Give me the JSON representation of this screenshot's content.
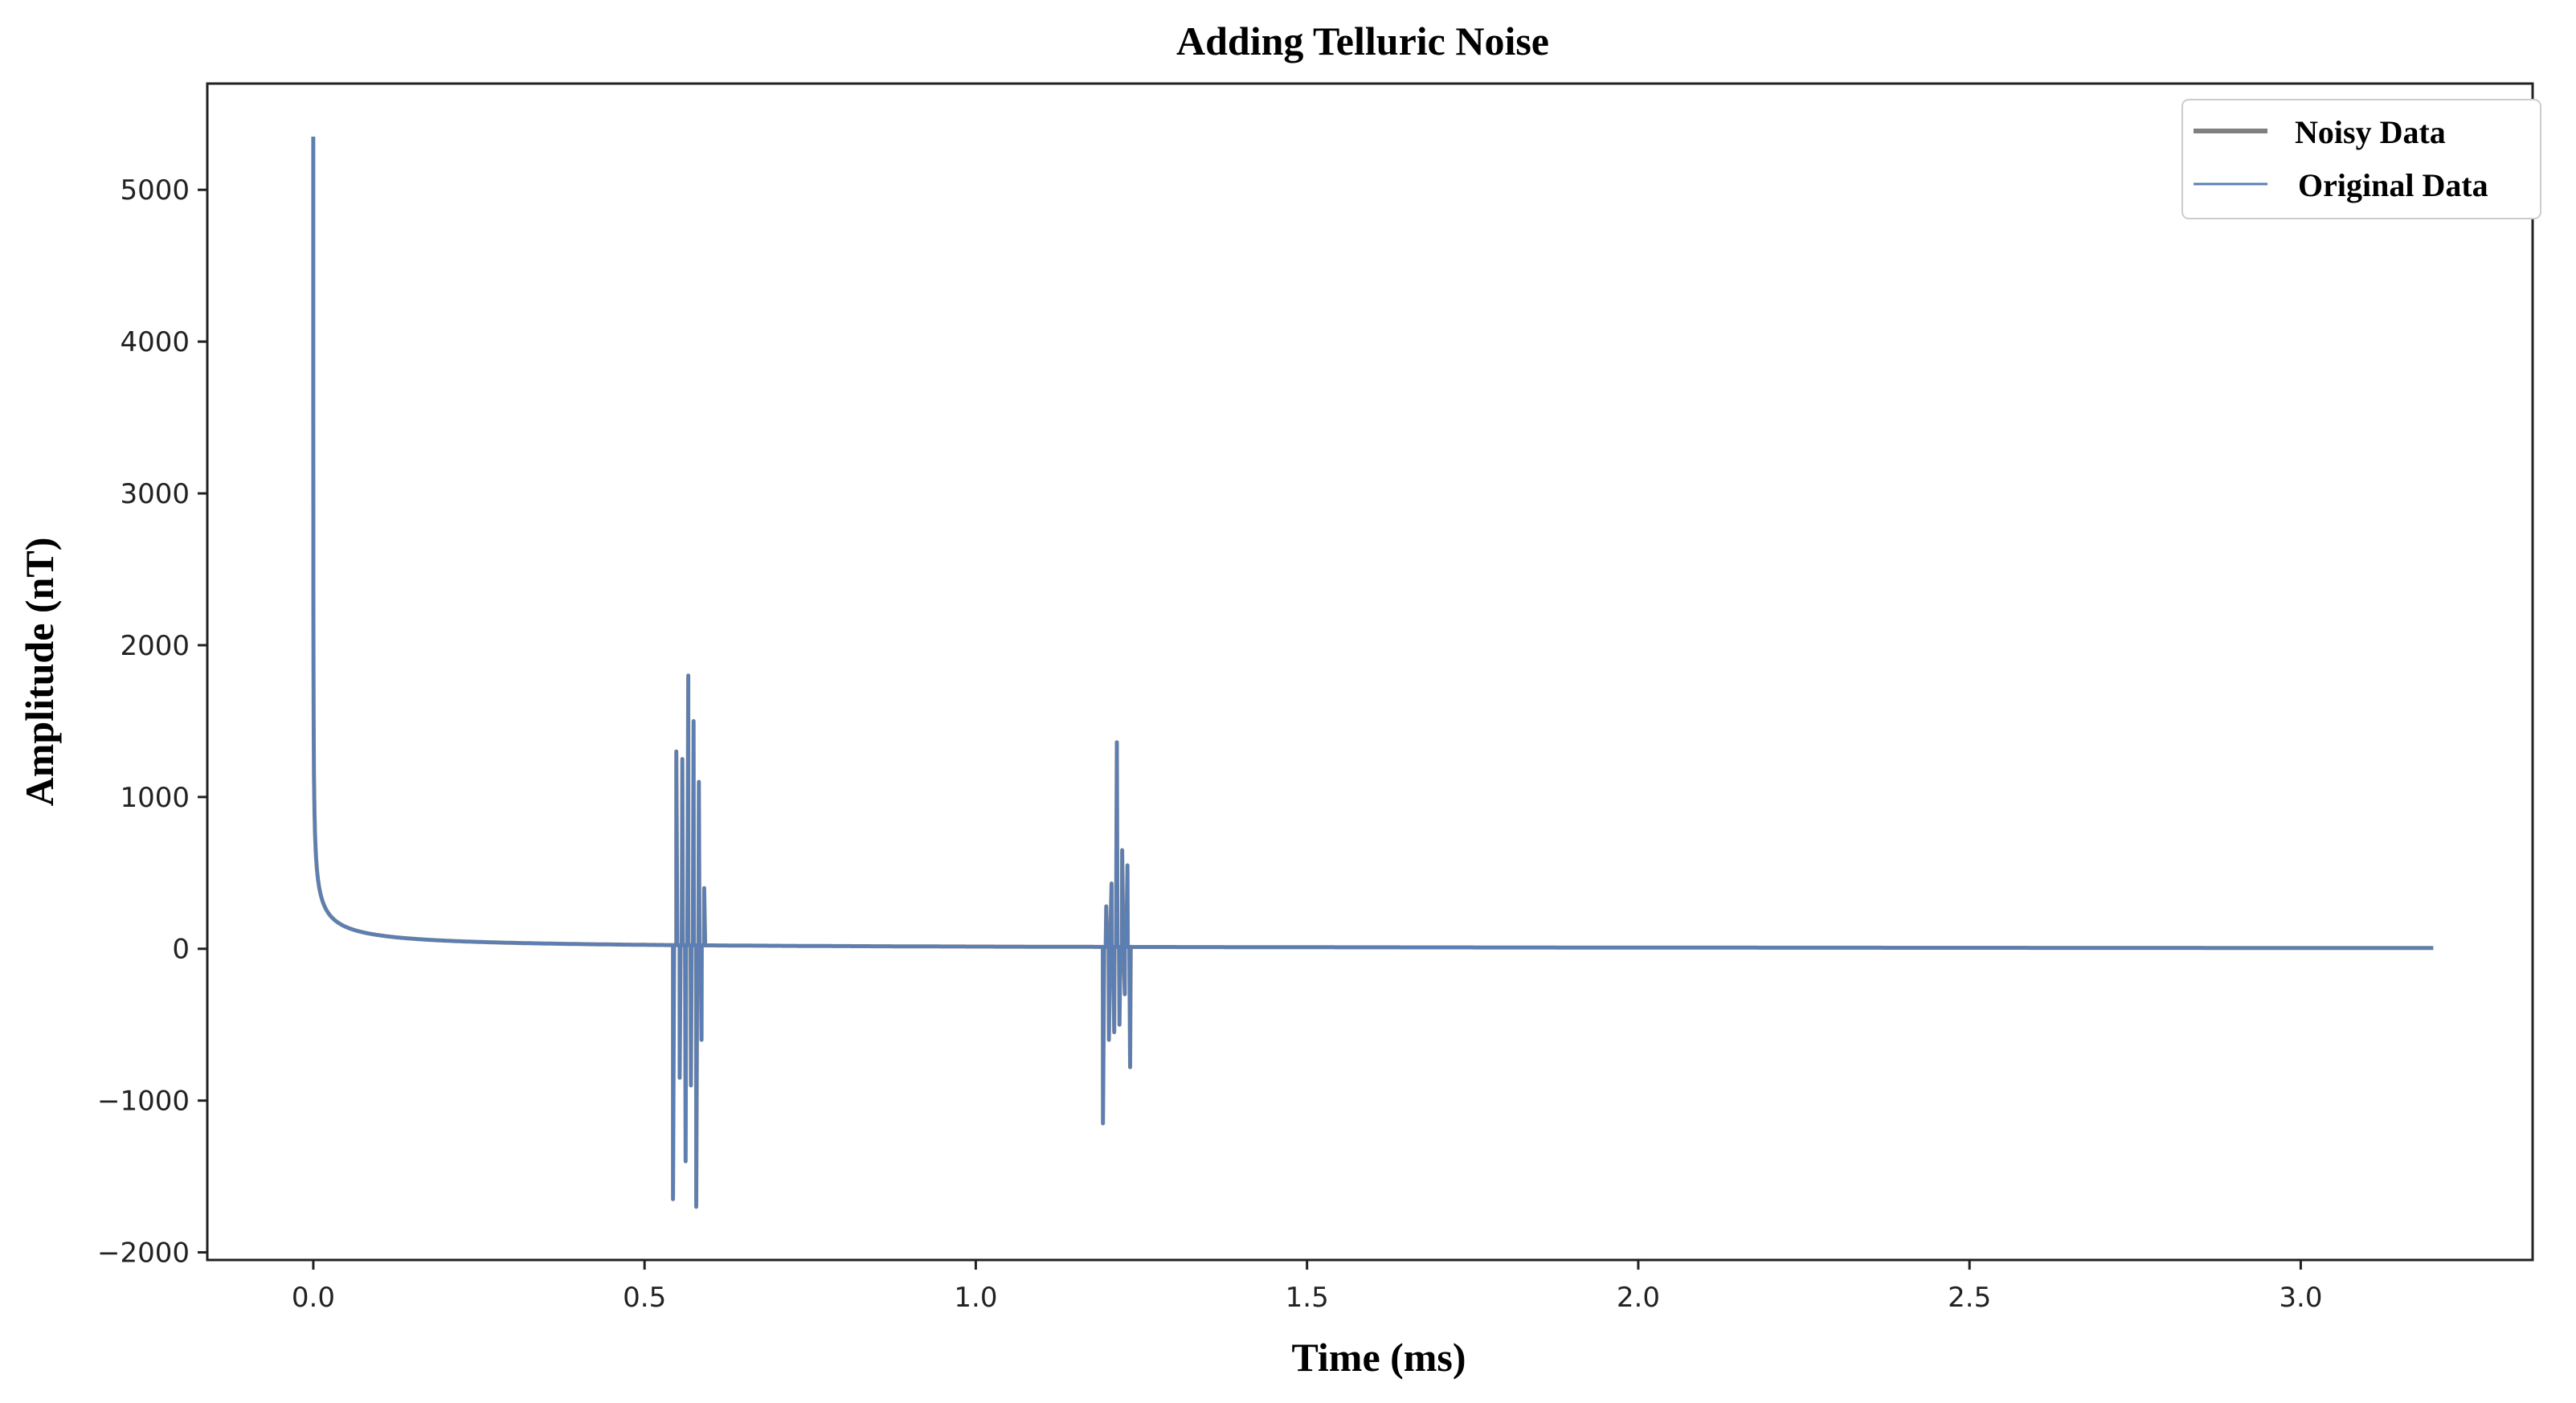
{
  "chart_data": {
    "type": "line",
    "title": "Adding Telluric Noise",
    "xlabel": "Time (ms)",
    "ylabel": "Amplitude (nT)",
    "xlim": [
      -0.16,
      3.35
    ],
    "ylim": [
      -2050,
      5700
    ],
    "xticks": [
      0.0,
      0.5,
      1.0,
      1.5,
      2.0,
      2.5,
      3.0
    ],
    "xtick_labels": [
      "0.0",
      "0.5",
      "1.0",
      "1.5",
      "2.0",
      "2.5",
      "3.0"
    ],
    "yticks": [
      5000,
      4000,
      3000,
      2000,
      1000,
      0,
      -1000,
      -2000
    ],
    "ytick_labels": [
      "5000",
      "4000",
      "3000",
      "2000",
      "1000",
      "0",
      "−1000",
      "−2000"
    ],
    "grid": false,
    "legend_position": "top-right",
    "series": [
      {
        "name": "Noisy Data",
        "color": "#808080",
        "decay": {
          "peak": 5350,
          "t_start": 0.0,
          "t_end": 3.2
        },
        "noise_bursts": [
          {
            "x": [
              0.543,
              0.548,
              0.553,
              0.557,
              0.562,
              0.566,
              0.57,
              0.574,
              0.578,
              0.582,
              0.586,
              0.59
            ],
            "y": [
              -1650,
              1300,
              -850,
              1250,
              -1400,
              1800,
              -900,
              1500,
              -1700,
              1100,
              -600,
              400
            ]
          },
          {
            "x": [
              1.192,
              1.197,
              1.201,
              1.205,
              1.209,
              1.213,
              1.217,
              1.221,
              1.225,
              1.229,
              1.233
            ],
            "y": [
              -1150,
              280,
              -600,
              430,
              -550,
              1360,
              -500,
              650,
              -300,
              550,
              -780
            ]
          }
        ]
      },
      {
        "name": "Original Data",
        "color": "#5b7fb5",
        "decay": {
          "peak": 5350,
          "t_start": 0.0,
          "t_end": 3.2
        },
        "noise_bursts": [
          {
            "x": [
              0.543,
              0.548,
              0.553,
              0.557,
              0.562,
              0.566,
              0.57,
              0.574,
              0.578,
              0.582,
              0.586,
              0.59
            ],
            "y": [
              -1650,
              1300,
              -850,
              1250,
              -1400,
              1800,
              -900,
              1500,
              -1700,
              1100,
              -600,
              400
            ]
          },
          {
            "x": [
              1.192,
              1.197,
              1.201,
              1.205,
              1.209,
              1.213,
              1.217,
              1.221,
              1.225,
              1.229,
              1.233
            ],
            "y": [
              -1150,
              280,
              -600,
              430,
              -550,
              1360,
              -500,
              650,
              -300,
              550,
              -780
            ]
          }
        ]
      }
    ]
  }
}
